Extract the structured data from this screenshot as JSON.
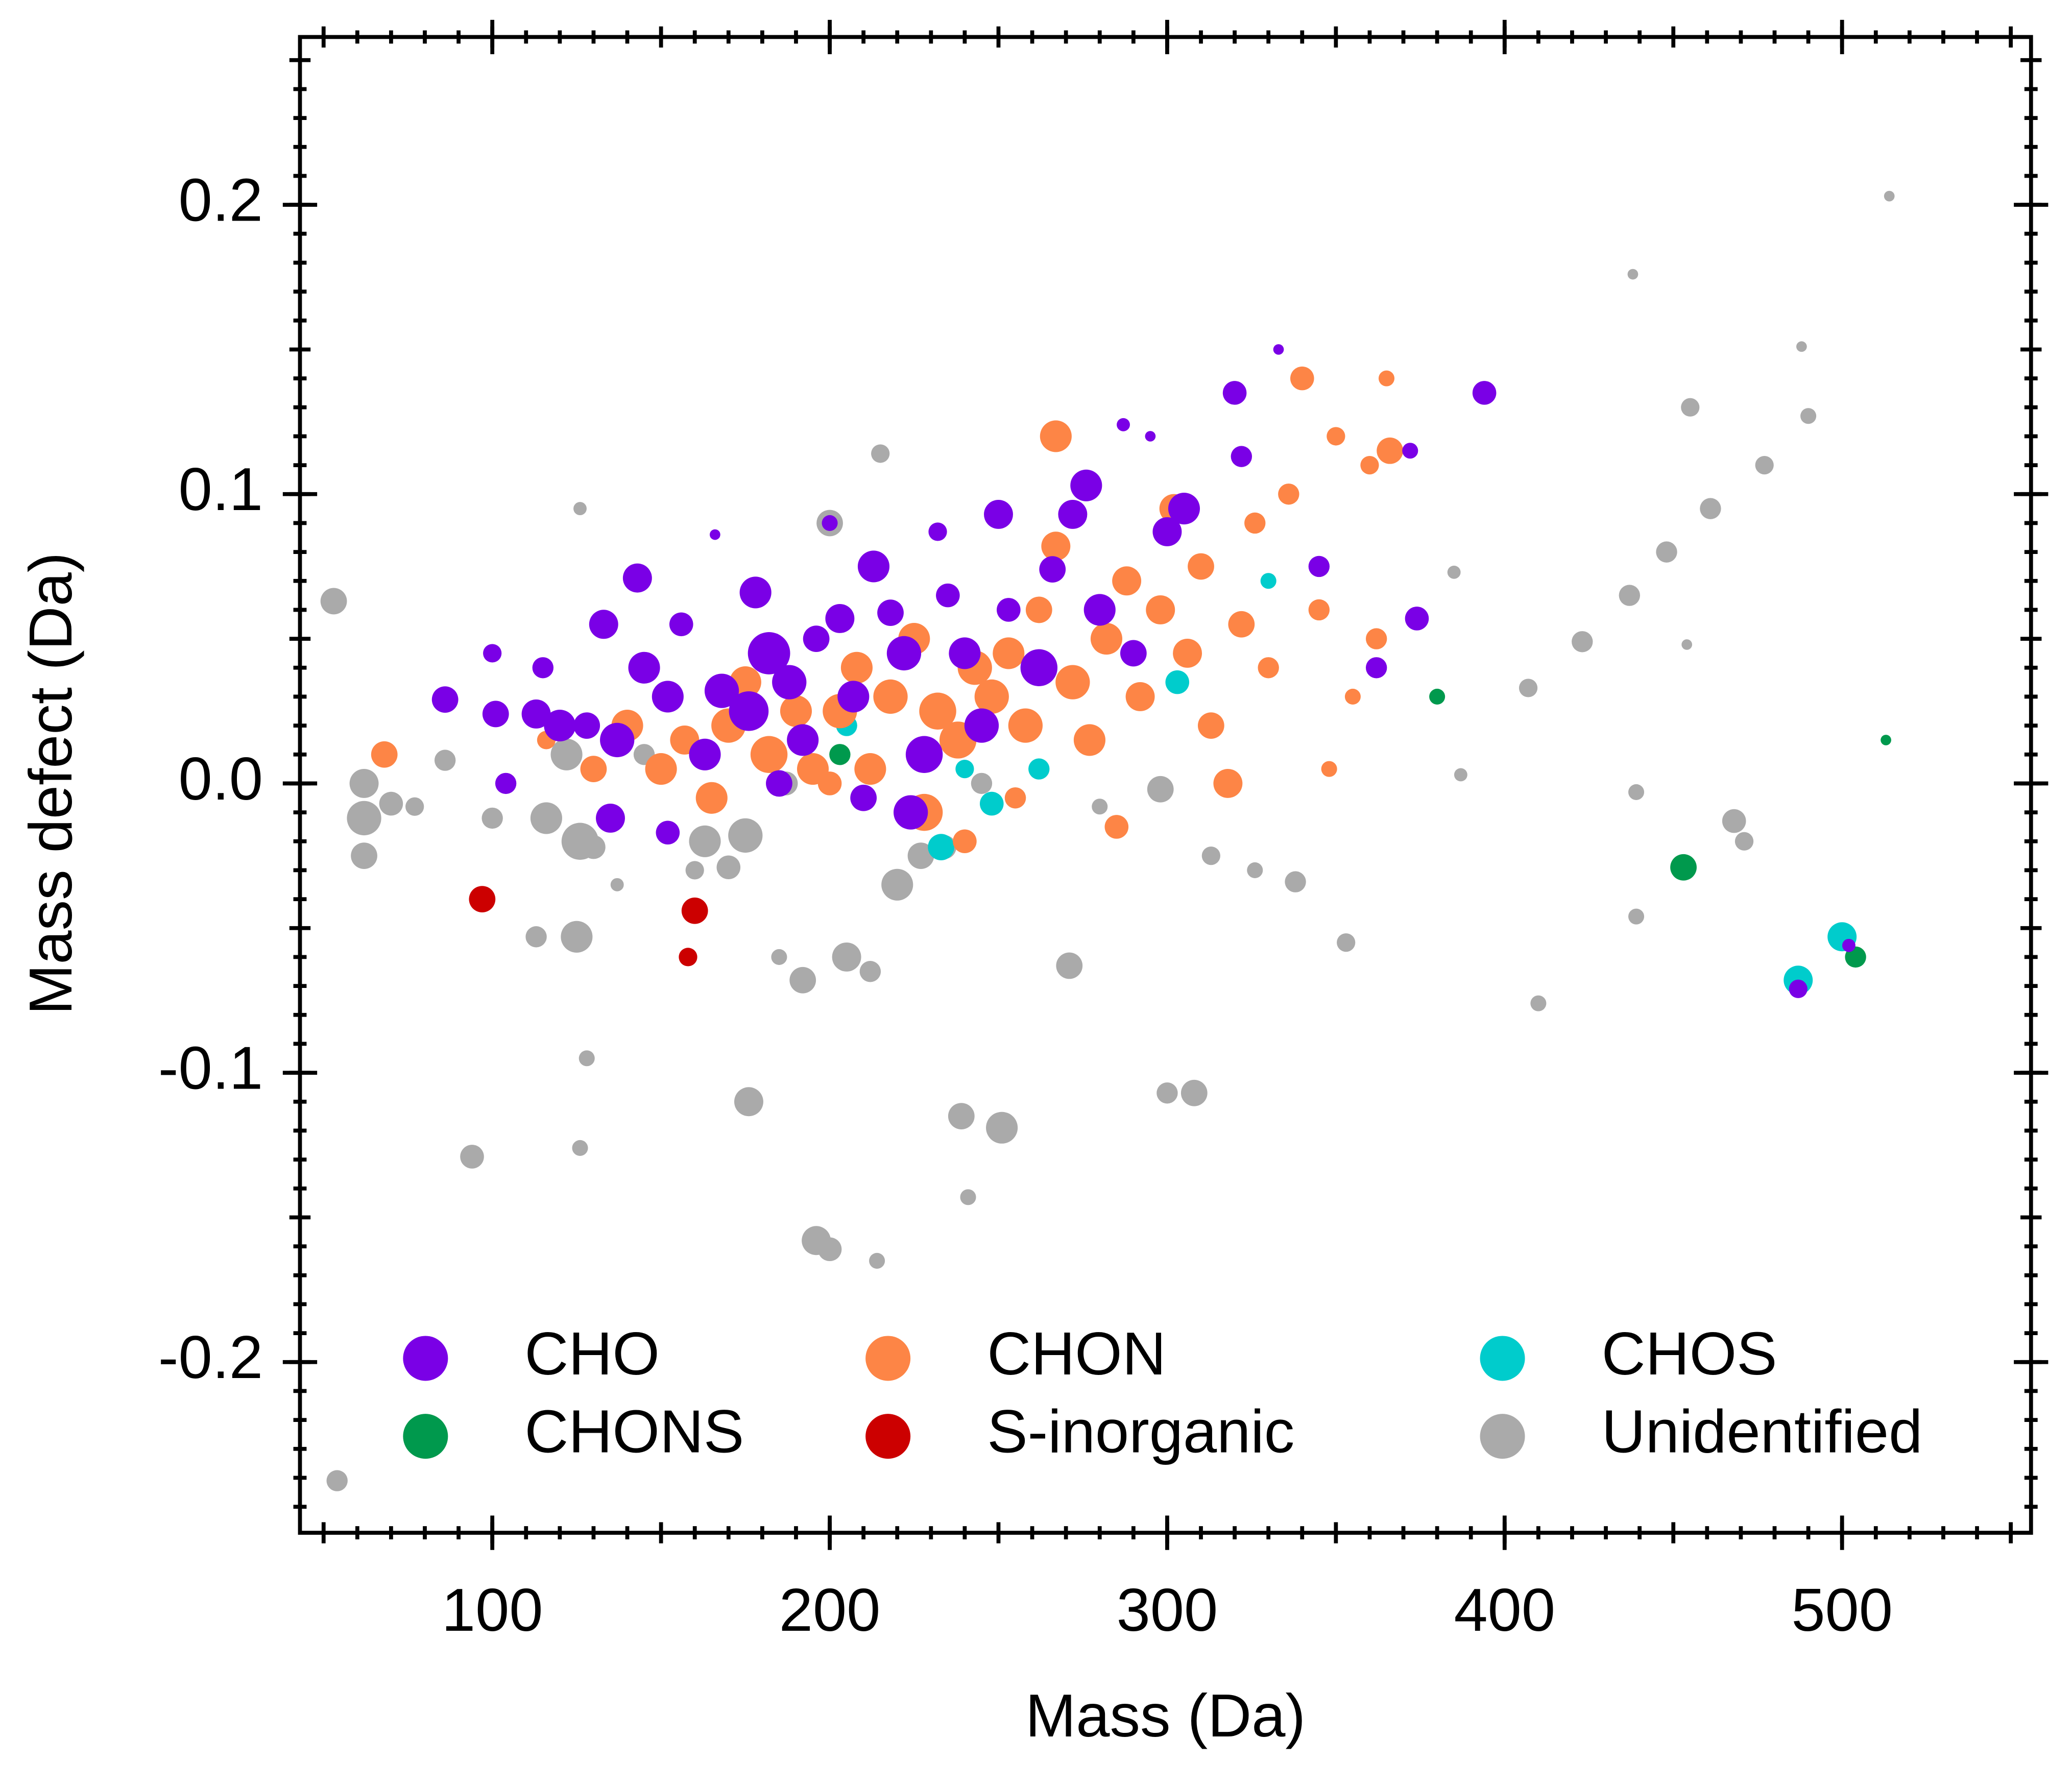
{
  "chart_data": {
    "type": "scatter",
    "x_label": "Mass (Da)",
    "y_label": "Mass defect (Da)",
    "xlim": [
      43,
      556
    ],
    "ylim": [
      -0.259,
      0.258
    ],
    "xticks": [
      100,
      200,
      300,
      400,
      500
    ],
    "yticks": [
      -0.2,
      -0.1,
      {
        "value": 0,
        "label": "0.0"
      },
      0.1,
      0.2
    ],
    "minor_ticks": true,
    "legend": "lower center",
    "series": [
      {
        "name": "CHO",
        "color": "#7a00e6",
        "x": [
          86,
          100,
          101,
          104,
          113,
          115,
          120,
          128,
          133,
          137,
          143,
          145,
          152,
          156,
          163,
          168,
          176,
          178,
          182,
          188,
          192,
          196,
          203,
          207,
          213,
          218,
          222,
          228,
          235,
          240,
          245,
          253,
          250,
          262,
          266,
          272,
          276,
          280,
          290,
          300,
          305,
          320,
          322,
          333,
          345,
          362,
          374,
          394,
          372,
          135,
          152,
          185,
          210,
          224,
          487,
          502,
          166,
          200,
          232,
          287,
          295
        ],
        "values": [
          0.029,
          0.045,
          0.024,
          0,
          0.024,
          0.04,
          0.02,
          0.02,
          0.055,
          0.015,
          0.071,
          0.04,
          0.03,
          0.055,
          0.01,
          0.032,
          0.025,
          0.066,
          0.045,
          0.035,
          0.015,
          0.05,
          0.057,
          0.03,
          0.075,
          0.059,
          0.045,
          0.01,
          0.065,
          0.045,
          0.02,
          0.06,
          0.093,
          0.04,
          0.074,
          0.093,
          0.103,
          0.06,
          0.045,
          0.087,
          0.095,
          0.135,
          0.113,
          0.15,
          0.075,
          0.04,
          0.057,
          0.135,
          0.115,
          -0.012,
          -0.017,
          0,
          -0.005,
          -0.01,
          -0.071,
          -0.056,
          0.086,
          0.09,
          0.087,
          0.124,
          0.12
        ],
        "sizes": [
          10,
          7,
          10,
          8,
          11,
          8,
          12,
          10,
          11,
          13,
          11,
          12,
          12,
          9,
          12,
          13,
          15,
          12,
          16,
          13,
          12,
          10,
          11,
          12,
          12,
          10,
          13,
          14,
          9,
          12,
          13,
          9,
          11,
          14,
          10,
          11,
          12,
          12,
          10,
          11,
          12,
          9,
          8,
          4,
          8,
          8,
          9,
          9,
          6,
          11,
          9,
          10,
          10,
          13,
          7,
          5,
          4,
          6,
          7,
          5,
          4
        ]
      },
      {
        "name": "CHON",
        "color": "#fd8546",
        "x": [
          68,
          116,
          130,
          140,
          150,
          157,
          165,
          170,
          175,
          182,
          190,
          195,
          203,
          208,
          212,
          218,
          225,
          228,
          232,
          238,
          243,
          248,
          253,
          258,
          262,
          267,
          267,
          272,
          277,
          282,
          285,
          288,
          292,
          298,
          302,
          306,
          310,
          313,
          318,
          322,
          326,
          330,
          336,
          340,
          345,
          350,
          355,
          360,
          362,
          366,
          365,
          348,
          240,
          200,
          255
        ],
        "values": [
          0.01,
          0.015,
          0.005,
          0.02,
          0.005,
          0.015,
          -0.005,
          0.02,
          0.035,
          0.01,
          0.025,
          0.005,
          0.025,
          0.04,
          0.005,
          0.03,
          0.05,
          -0.01,
          0.025,
          0.015,
          0.04,
          0.03,
          0.045,
          0.02,
          0.06,
          0.082,
          0.12,
          0.035,
          0.015,
          0.05,
          -0.015,
          0.07,
          0.03,
          0.06,
          0.095,
          0.045,
          0.075,
          0.02,
          0,
          0.055,
          0.09,
          0.04,
          0.1,
          0.14,
          0.06,
          0.12,
          0.03,
          0.11,
          0.05,
          0.115,
          0.14,
          0.005,
          -0.02,
          0,
          -0.005
        ],
        "sizes": [
          10,
          7,
          10,
          12,
          12,
          11,
          12,
          13,
          12,
          14,
          12,
          12,
          13,
          12,
          12,
          13,
          12,
          14,
          14,
          14,
          13,
          13,
          12,
          13,
          10,
          11,
          12,
          13,
          12,
          12,
          9,
          11,
          11,
          11,
          11,
          11,
          10,
          10,
          11,
          10,
          8,
          8,
          8,
          9,
          8,
          7,
          6,
          7,
          8,
          10,
          6,
          6,
          9,
          9,
          8
        ]
      },
      {
        "name": "CHOS",
        "color": "#00cccc",
        "x": [
          487,
          500,
          233,
          248,
          262,
          303,
          205,
          330,
          240
        ],
        "values": [
          -0.068,
          -0.053,
          -0.022,
          -0.007,
          0.005,
          0.035,
          0.02,
          0.07,
          0.005
        ],
        "sizes": [
          11,
          11,
          10,
          9,
          8,
          9,
          8,
          6,
          7
        ]
      },
      {
        "name": "CHONS",
        "color": "#00994d",
        "x": [
          380,
          453,
          513,
          504,
          203
        ],
        "values": [
          0.03,
          -0.029,
          0.015,
          -0.06,
          0.01
        ],
        "sizes": [
          6,
          10,
          4,
          8,
          8
        ]
      },
      {
        "name": "S-inorganic",
        "color": "#cc0000",
        "x": [
          97,
          160,
          158
        ],
        "values": [
          -0.04,
          -0.044,
          -0.06
        ],
        "sizes": [
          10,
          10,
          7
        ]
      },
      {
        "name": "Unidentified",
        "color": "#aaaaaa",
        "x": [
          53,
          54,
          62,
          62,
          62,
          70,
          77,
          86,
          94,
          100,
          113,
          116,
          122,
          125,
          126,
          126,
          126,
          128,
          137,
          145,
          160,
          163,
          170,
          175,
          176,
          185,
          192,
          200,
          205,
          212,
          215,
          220,
          227,
          234,
          239,
          241,
          251,
          255,
          271,
          298,
          300,
          308,
          313,
          326,
          338,
          353,
          385,
          387,
          407,
          410,
          423,
          437,
          439,
          438,
          439,
          448,
          454,
          455,
          461,
          468,
          471,
          477,
          488,
          490,
          514,
          196,
          200,
          214,
          187,
          245,
          130,
          280
        ],
        "values": [
          0.063,
          -0.241,
          0,
          -0.012,
          -0.025,
          -0.007,
          -0.008,
          0.008,
          -0.129,
          -0.012,
          -0.053,
          -0.012,
          0.01,
          -0.053,
          0.095,
          -0.02,
          -0.126,
          -0.095,
          -0.035,
          0.01,
          -0.03,
          -0.02,
          -0.029,
          -0.018,
          -0.11,
          -0.06,
          -0.068,
          0.09,
          -0.06,
          -0.065,
          0.114,
          -0.035,
          -0.025,
          -0.022,
          -0.115,
          -0.143,
          -0.119,
          -0.005,
          -0.063,
          -0.002,
          -0.107,
          -0.107,
          -0.025,
          -0.03,
          -0.034,
          -0.055,
          0.073,
          0.003,
          0.033,
          -0.076,
          0.049,
          0.065,
          -0.003,
          0.176,
          -0.046,
          0.08,
          0.048,
          0.13,
          0.095,
          -0.013,
          -0.02,
          0.11,
          0.151,
          0.127,
          0.203,
          -0.158,
          -0.161,
          -0.165,
          0,
          0,
          -0.022,
          -0.008
        ],
        "sizes": [
          10,
          8,
          11,
          13,
          10,
          9,
          7,
          8,
          9,
          8,
          8,
          12,
          12,
          12,
          5,
          14,
          6,
          6,
          5,
          8,
          7,
          12,
          9,
          13,
          11,
          6,
          10,
          10,
          11,
          8,
          7,
          12,
          10,
          9,
          10,
          6,
          12,
          8,
          10,
          10,
          8,
          10,
          7,
          6,
          8,
          7,
          5,
          5,
          7,
          6,
          8,
          8,
          6,
          4,
          6,
          8,
          4,
          7,
          8,
          9,
          7,
          7,
          4,
          6,
          4,
          11,
          9,
          6,
          9,
          8,
          9,
          6
        ]
      }
    ]
  }
}
